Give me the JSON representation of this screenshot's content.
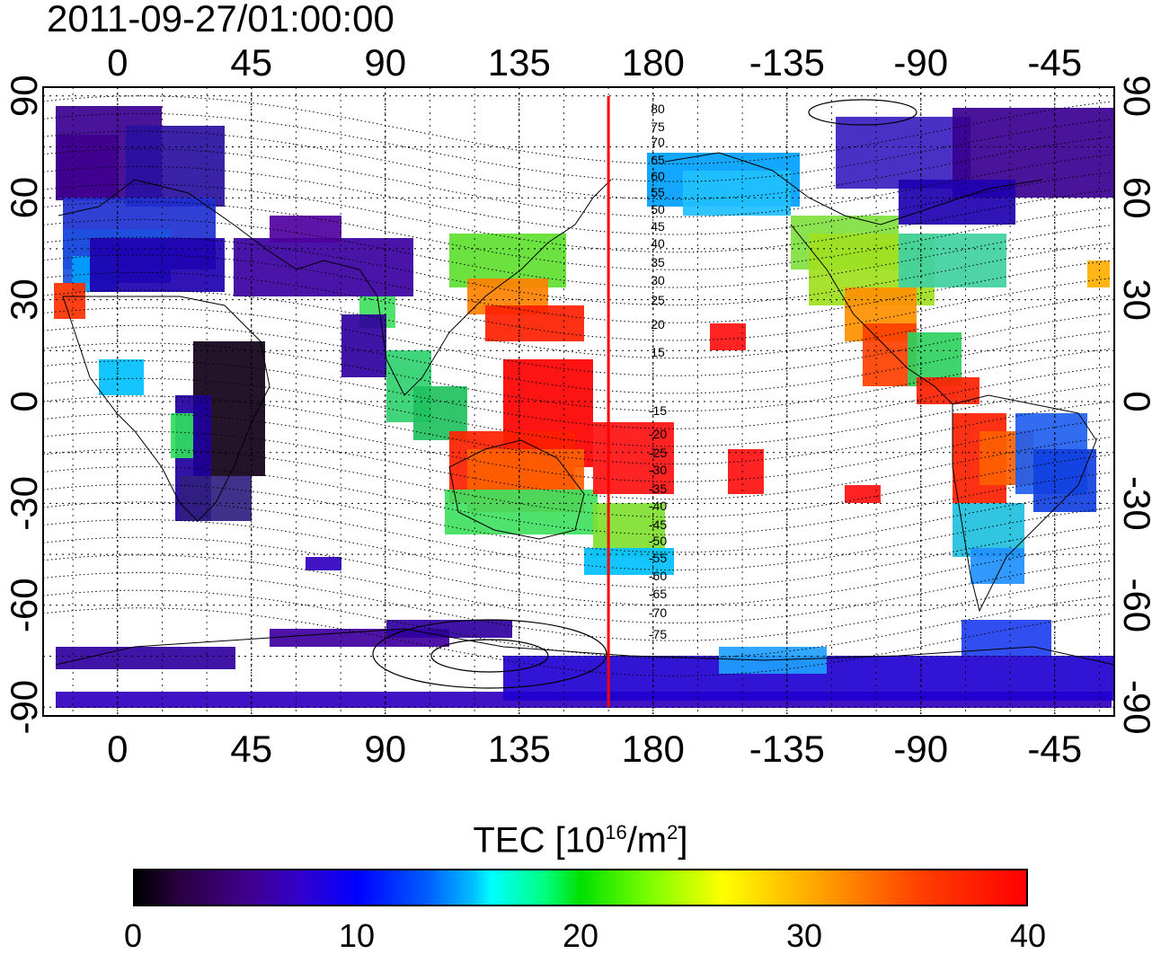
{
  "title": "2011-09-27/01:00:00",
  "map": {
    "top_lon_ticks": [
      "0",
      "45",
      "90",
      "135",
      "180",
      "-135",
      "-90",
      "-45"
    ],
    "bottom_lon_ticks": [
      "0",
      "45",
      "90",
      "135",
      "180",
      "-135",
      "-90",
      "-45"
    ],
    "left_lat_ticks": [
      "90",
      "60",
      "30",
      "0",
      "-30",
      "-60",
      "-90"
    ],
    "right_lat_ticks": [
      "90",
      "60",
      "30",
      "0",
      "-30",
      "-60",
      "-90"
    ],
    "terminator_lon": 165,
    "contour_labels_north": [
      "80",
      "75",
      "70",
      "65",
      "60",
      "55",
      "50",
      "45",
      "40",
      "35",
      "30",
      "25",
      "20",
      "15"
    ],
    "contour_labels_south": [
      "-15",
      "-20",
      "-25",
      "-30",
      "-35",
      "-40",
      "-45",
      "-50",
      "-55",
      "-60",
      "-65",
      "-70",
      "-75"
    ],
    "colors": {
      "terminator": "#ff0000",
      "frame": "#000000"
    }
  },
  "colorbar": {
    "label_main": "TEC  [10",
    "label_exp1": "16",
    "label_mid": "/m",
    "label_exp2": "2",
    "label_end": "]",
    "ticks": [
      "0",
      "10",
      "20",
      "30",
      "40"
    ],
    "range": [
      0,
      40
    ],
    "colors": [
      "#000000",
      "#400090",
      "#0000ff",
      "#00ffff",
      "#00e000",
      "#ffff00",
      "#ff0000"
    ]
  }
}
